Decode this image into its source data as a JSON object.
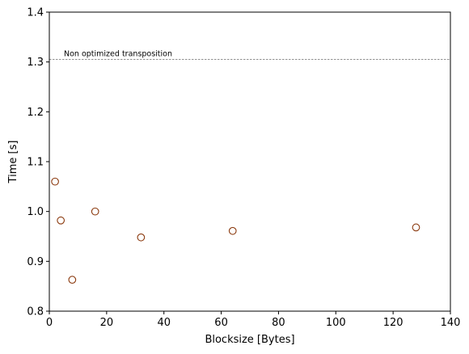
{
  "chart_data": {
    "type": "scatter",
    "xlabel": "Blocksize [Bytes]",
    "ylabel": "Time [s]",
    "xlim": [
      0,
      140
    ],
    "ylim": [
      0.8,
      1.4
    ],
    "xticks": [
      0,
      20,
      40,
      60,
      80,
      100,
      120,
      140
    ],
    "yticks": [
      0.8,
      0.9,
      1.0,
      1.1,
      1.2,
      1.3,
      1.4
    ],
    "xtick_labels": [
      "0",
      "20",
      "40",
      "60",
      "80",
      "100",
      "120",
      "140"
    ],
    "ytick_labels": [
      "0.8",
      "0.9",
      "1.0",
      "1.1",
      "1.2",
      "1.3",
      "1.4"
    ],
    "grid": false,
    "marker": "hollow-circle",
    "marker_color": "#8b3a0f",
    "reference_line": {
      "y": 1.305,
      "label": "Non optimized transposition",
      "style": "dashed",
      "color": "#808080"
    },
    "points": [
      {
        "x": 2,
        "y": 1.06
      },
      {
        "x": 4,
        "y": 0.982
      },
      {
        "x": 8,
        "y": 0.863
      },
      {
        "x": 16,
        "y": 1.0
      },
      {
        "x": 32,
        "y": 0.948
      },
      {
        "x": 64,
        "y": 0.961
      },
      {
        "x": 128,
        "y": 0.968
      }
    ]
  }
}
